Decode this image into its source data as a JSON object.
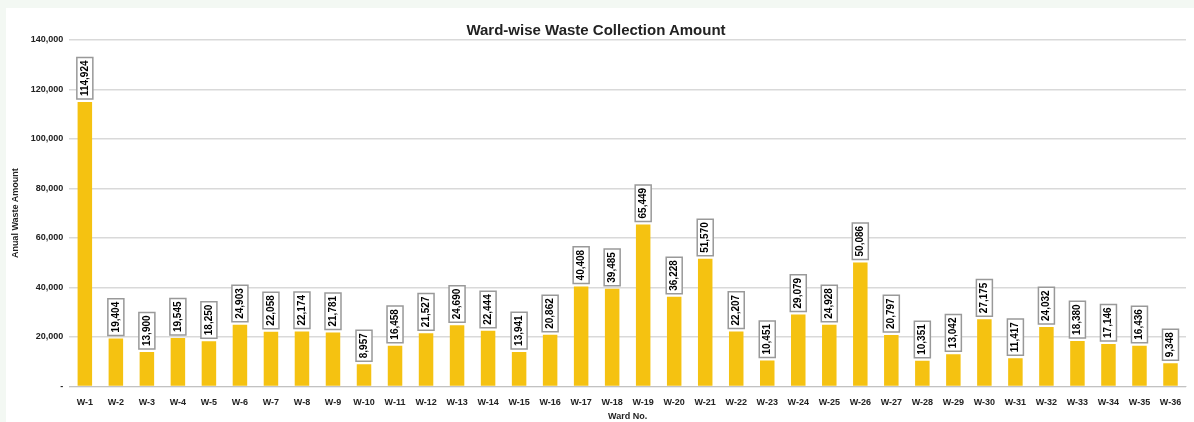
{
  "chart_data": {
    "type": "bar",
    "title": "Ward-wise Waste Collection Amount",
    "xlabel": "Ward No.",
    "ylabel": "Anual Waste Amount",
    "categories": [
      "W-1",
      "W-2",
      "W-3",
      "W-4",
      "W-5",
      "W-6",
      "W-7",
      "W-8",
      "W-9",
      "W-10",
      "W-11",
      "W-12",
      "W-13",
      "W-14",
      "W-15",
      "W-16",
      "W-17",
      "W-18",
      "W-19",
      "W-20",
      "W-21",
      "W-22",
      "W-23",
      "W-24",
      "W-25",
      "W-26",
      "W-27",
      "W-28",
      "W-29",
      "W-30",
      "W-31",
      "W-32",
      "W-33",
      "W-34",
      "W-35",
      "W-36"
    ],
    "values": [
      114924,
      19404,
      13900,
      19545,
      18250,
      24903,
      22058,
      22174,
      21781,
      8957,
      16458,
      21527,
      24690,
      22444,
      13941,
      20862,
      40408,
      39485,
      65449,
      36228,
      51570,
      22207,
      10451,
      29079,
      24928,
      50086,
      20797,
      10351,
      13042,
      27175,
      11417,
      24032,
      18380,
      17146,
      16436,
      9348
    ],
    "value_labels": [
      "114,924",
      "19,404",
      "13,900",
      "19,545",
      "18,250",
      "24,903",
      "22,058",
      "22,174",
      "21,781",
      "8,957",
      "16,458",
      "21,527",
      "24,690",
      "22,444",
      "13,941",
      "20,862",
      "40,408",
      "39,485",
      "65,449",
      "36,228",
      "51,570",
      "22,207",
      "10,451",
      "29,079",
      "24,928",
      "50,086",
      "20,797",
      "10,351",
      "13,042",
      "27,175",
      "11,417",
      "24,032",
      "18,380",
      "17,146",
      "16,436",
      "9,348"
    ],
    "color": "#f5c211",
    "ylim": [
      0,
      140000
    ],
    "yticks": [
      {
        "value": 0,
        "label": "-"
      },
      {
        "value": 20000,
        "label": "20,000"
      },
      {
        "value": 40000,
        "label": "40,000"
      },
      {
        "value": 60000,
        "label": "60,000"
      },
      {
        "value": 80000,
        "label": "80,000"
      },
      {
        "value": 100000,
        "label": "100,000"
      },
      {
        "value": 120000,
        "label": "120,000"
      },
      {
        "value": 140000,
        "label": "140,000"
      }
    ],
    "grid": "y",
    "legend": false
  }
}
